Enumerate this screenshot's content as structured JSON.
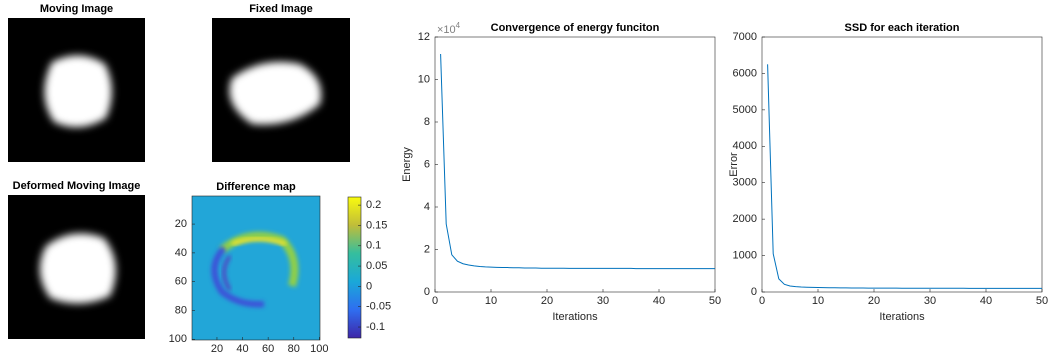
{
  "chart_data": [
    {
      "type": "image",
      "title": "Moving Image"
    },
    {
      "type": "image",
      "title": "Fixed Image"
    },
    {
      "type": "image",
      "title": "Deformed Moving Image"
    },
    {
      "type": "heatmap",
      "title": "Difference map",
      "xlim": [
        0.5,
        100.5
      ],
      "ylim": [
        0.5,
        100.5
      ],
      "y_reversed": true,
      "xticks": [
        20,
        40,
        60,
        80,
        100
      ],
      "yticks": [
        20,
        40,
        60,
        80,
        100
      ],
      "clim": [
        -0.127,
        0.22
      ],
      "cticks": [
        -0.1,
        -0.05,
        0,
        0.05,
        0.1,
        0.15,
        0.2
      ]
    },
    {
      "type": "line",
      "title": "Convergence of energy funciton",
      "xlabel": "Iterations",
      "ylabel": "Energy",
      "y_scale_label": "×10",
      "y_scale_exponent": 4,
      "color": "#0072bd",
      "xlim": [
        0,
        50
      ],
      "ylim": [
        0,
        12
      ],
      "xticks": [
        0,
        10,
        20,
        30,
        40,
        50
      ],
      "yticks": [
        0,
        2,
        4,
        6,
        8,
        10,
        12
      ],
      "x": [
        1,
        2,
        3,
        4,
        5,
        6,
        7,
        8,
        9,
        10,
        11,
        12,
        13,
        14,
        15,
        16,
        17,
        18,
        19,
        20,
        21,
        22,
        23,
        24,
        25,
        26,
        27,
        28,
        29,
        30,
        31,
        32,
        33,
        34,
        35,
        36,
        37,
        38,
        39,
        40,
        41,
        42,
        43,
        44,
        45,
        46,
        47,
        48,
        49,
        50
      ],
      "values": [
        11.2,
        3.2,
        1.75,
        1.45,
        1.33,
        1.27,
        1.23,
        1.2,
        1.18,
        1.17,
        1.16,
        1.15,
        1.15,
        1.14,
        1.14,
        1.13,
        1.13,
        1.13,
        1.12,
        1.12,
        1.12,
        1.12,
        1.12,
        1.11,
        1.11,
        1.11,
        1.11,
        1.11,
        1.11,
        1.11,
        1.11,
        1.11,
        1.11,
        1.11,
        1.11,
        1.1,
        1.1,
        1.1,
        1.1,
        1.1,
        1.1,
        1.1,
        1.1,
        1.1,
        1.1,
        1.1,
        1.1,
        1.1,
        1.1,
        1.1
      ]
    },
    {
      "type": "line",
      "title": "SSD for each iteration",
      "xlabel": "Iterations",
      "ylabel": "Error",
      "color": "#0072bd",
      "xlim": [
        0,
        50
      ],
      "ylim": [
        0,
        7000
      ],
      "xticks": [
        0,
        10,
        20,
        30,
        40,
        50
      ],
      "yticks": [
        0,
        1000,
        2000,
        3000,
        4000,
        5000,
        6000,
        7000
      ],
      "x": [
        1,
        2,
        3,
        4,
        5,
        6,
        7,
        8,
        9,
        10,
        11,
        12,
        13,
        14,
        15,
        16,
        17,
        18,
        19,
        20,
        21,
        22,
        23,
        24,
        25,
        26,
        27,
        28,
        29,
        30,
        31,
        32,
        33,
        34,
        35,
        36,
        37,
        38,
        39,
        40,
        41,
        42,
        43,
        44,
        45,
        46,
        47,
        48,
        49,
        50
      ],
      "values": [
        6250,
        1050,
        360,
        210,
        165,
        148,
        138,
        132,
        127,
        123,
        120,
        118,
        116,
        114,
        112,
        111,
        110,
        109,
        108,
        107,
        106,
        106,
        105,
        105,
        104,
        104,
        104,
        103,
        103,
        103,
        103,
        102,
        102,
        102,
        102,
        102,
        101,
        101,
        101,
        101,
        101,
        101,
        100,
        100,
        100,
        100,
        100,
        100,
        100,
        100
      ]
    }
  ]
}
